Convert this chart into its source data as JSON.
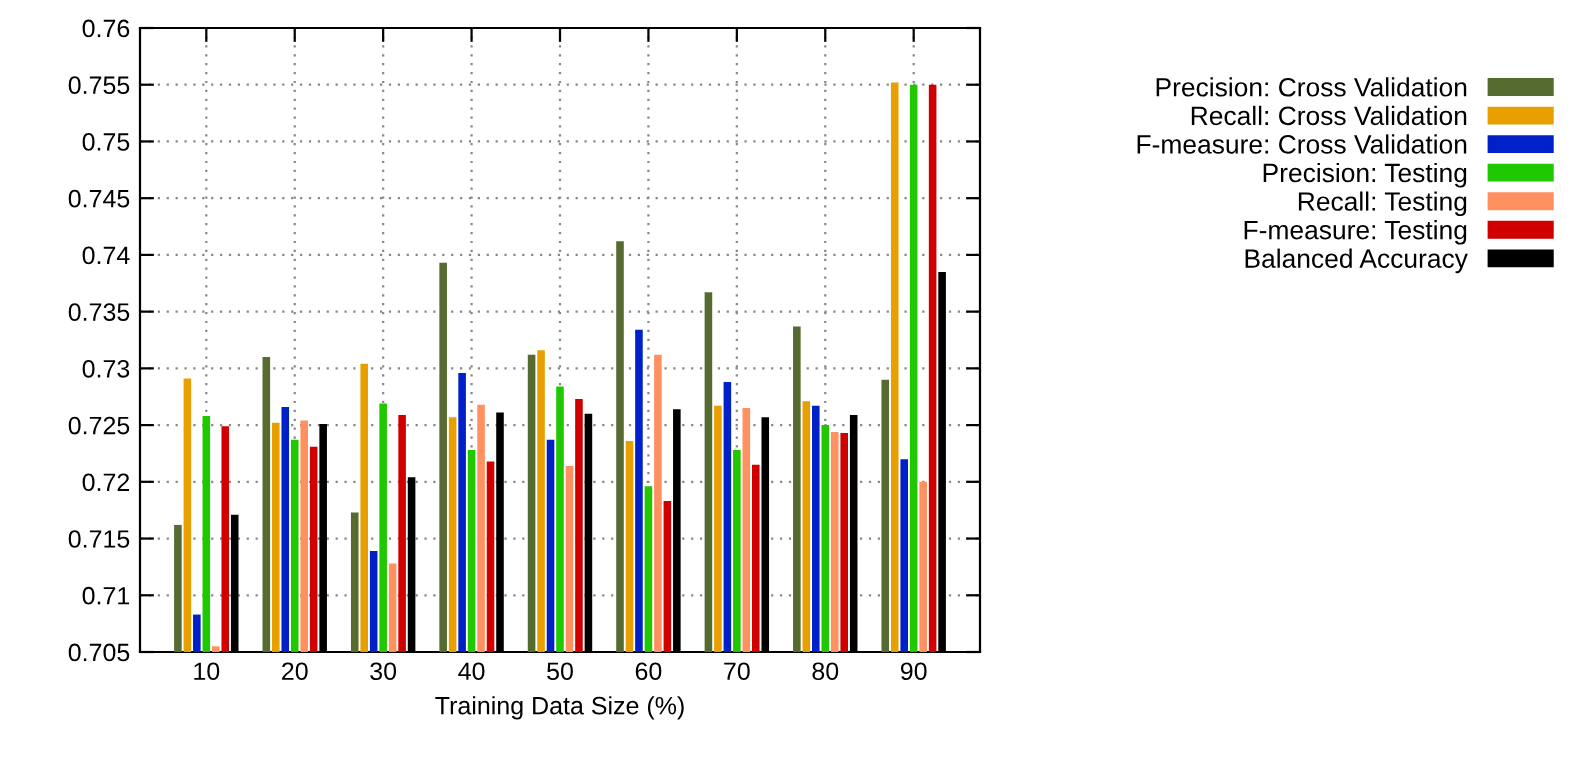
{
  "chart_data": {
    "type": "bar",
    "xlabel": "Training Data Size (%)",
    "categories": [
      "10",
      "20",
      "30",
      "40",
      "50",
      "60",
      "70",
      "80",
      "90"
    ],
    "series": [
      {
        "name": "Precision: Cross Validation",
        "color": "#556b2f",
        "values": [
          0.7162,
          0.731,
          0.7173,
          0.7393,
          0.7312,
          0.7412,
          0.7367,
          0.7337,
          0.729
        ]
      },
      {
        "name": "Recall: Cross Validation",
        "color": "#e8a000",
        "values": [
          0.7291,
          0.7252,
          0.7304,
          0.7257,
          0.7316,
          0.7236,
          0.7267,
          0.7271,
          0.7552
        ]
      },
      {
        "name": "F-measure: Cross Validation",
        "color": "#0020c8",
        "values": [
          0.7083,
          0.7266,
          0.7139,
          0.7296,
          0.7237,
          0.7334,
          0.7288,
          0.7267,
          0.722
        ]
      },
      {
        "name": "Precision: Testing",
        "color": "#20c800",
        "values": [
          0.7258,
          0.7237,
          0.7269,
          0.7228,
          0.7284,
          0.7196,
          0.7228,
          0.725,
          0.755
        ]
      },
      {
        "name": "Recall: Testing",
        "color": "#ff9060",
        "values": [
          0.7055,
          0.7254,
          0.7128,
          0.7268,
          0.7214,
          0.7312,
          0.7265,
          0.7244,
          0.72
        ]
      },
      {
        "name": "F-measure: Testing",
        "color": "#d00000",
        "values": [
          0.7249,
          0.7231,
          0.7259,
          0.7218,
          0.7273,
          0.7183,
          0.7215,
          0.7243,
          0.755
        ]
      },
      {
        "name": "Balanced Accuracy",
        "color": "#000000",
        "values": [
          0.7171,
          0.7251,
          0.7204,
          0.7261,
          0.726,
          0.7264,
          0.7257,
          0.7259,
          0.7385
        ]
      }
    ],
    "ylim": [
      0.705,
      0.76
    ],
    "yticks": [
      0.705,
      0.71,
      0.715,
      0.72,
      0.725,
      0.73,
      0.735,
      0.74,
      0.745,
      0.75,
      0.755,
      0.76
    ],
    "grid": true,
    "legend": "top right"
  }
}
